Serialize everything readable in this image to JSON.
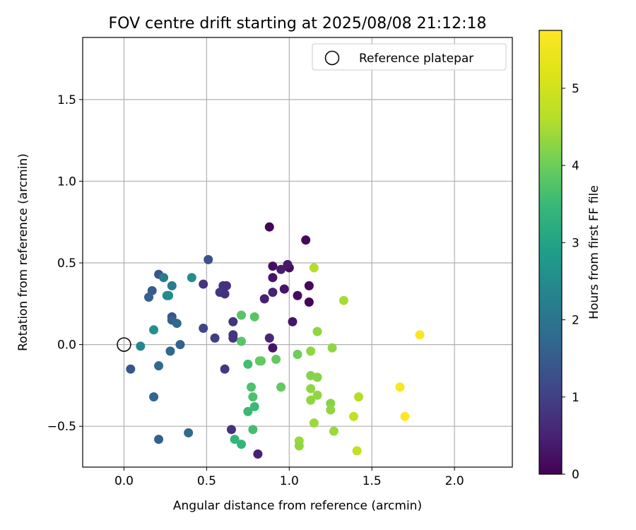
{
  "chart_data": {
    "type": "scatter",
    "title": "FOV centre drift starting at 2025/08/08 21:12:18",
    "xlabel": "Angular distance from reference (arcmin)",
    "ylabel": "Rotation from reference (arcmin)",
    "xlim": [
      -0.25,
      2.35
    ],
    "ylim": [
      -0.75,
      1.88
    ],
    "xticks": [
      0.0,
      0.5,
      1.0,
      1.5,
      2.0
    ],
    "xtick_labels": [
      "0.0",
      "0.5",
      "1.0",
      "1.5",
      "2.0"
    ],
    "yticks": [
      -0.5,
      0.0,
      0.5,
      1.0,
      1.5
    ],
    "ytick_labels": [
      "−0.5",
      "0.0",
      "0.5",
      "1.0",
      "1.5"
    ],
    "grid": true,
    "legend": {
      "placement": "top-right",
      "entries": [
        "Reference platepar"
      ]
    },
    "reference_point": {
      "x": 0.0,
      "y": 0.0,
      "label": "Reference platepar"
    },
    "colorbar": {
      "label": "Hours from first FF file",
      "colormap": "viridis",
      "range": [
        0,
        5.75
      ],
      "ticks": [
        0,
        1,
        2,
        3,
        4,
        5
      ],
      "tick_labels": [
        "0",
        "1",
        "2",
        "3",
        "4",
        "5"
      ]
    },
    "points": [
      {
        "x": 0.88,
        "y": 0.72,
        "hours": 0.05
      },
      {
        "x": 1.1,
        "y": 0.64,
        "hours": 0.1
      },
      {
        "x": 0.9,
        "y": 0.48,
        "hours": 0.2
      },
      {
        "x": 1.0,
        "y": 0.47,
        "hours": 0.15
      },
      {
        "x": 0.95,
        "y": 0.46,
        "hours": 0.4
      },
      {
        "x": 0.99,
        "y": 0.49,
        "hours": 0.35
      },
      {
        "x": 0.9,
        "y": 0.41,
        "hours": 0.3
      },
      {
        "x": 1.12,
        "y": 0.36,
        "hours": 0.1
      },
      {
        "x": 0.97,
        "y": 0.34,
        "hours": 0.3
      },
      {
        "x": 0.9,
        "y": 0.32,
        "hours": 0.5
      },
      {
        "x": 1.05,
        "y": 0.3,
        "hours": 0.15
      },
      {
        "x": 1.12,
        "y": 0.26,
        "hours": 0.05
      },
      {
        "x": 0.85,
        "y": 0.28,
        "hours": 0.45
      },
      {
        "x": 1.02,
        "y": 0.14,
        "hours": 0.3
      },
      {
        "x": 0.88,
        "y": 0.04,
        "hours": 0.55
      },
      {
        "x": 0.9,
        "y": -0.02,
        "hours": 0.3
      },
      {
        "x": 0.81,
        "y": -0.67,
        "hours": 0.45
      },
      {
        "x": 0.62,
        "y": 0.36,
        "hours": 0.75
      },
      {
        "x": 0.6,
        "y": 0.36,
        "hours": 0.75
      },
      {
        "x": 0.58,
        "y": 0.32,
        "hours": 0.85
      },
      {
        "x": 0.61,
        "y": 0.31,
        "hours": 0.75
      },
      {
        "x": 0.48,
        "y": 0.37,
        "hours": 0.8
      },
      {
        "x": 0.66,
        "y": 0.14,
        "hours": 0.8
      },
      {
        "x": 0.66,
        "y": 0.06,
        "hours": 0.8
      },
      {
        "x": 0.66,
        "y": 0.04,
        "hours": 0.8
      },
      {
        "x": 0.55,
        "y": 0.04,
        "hours": 0.95
      },
      {
        "x": 0.48,
        "y": 0.1,
        "hours": 1.1
      },
      {
        "x": 0.61,
        "y": -0.15,
        "hours": 0.85
      },
      {
        "x": 0.65,
        "y": -0.52,
        "hours": 0.75
      },
      {
        "x": 0.51,
        "y": 0.52,
        "hours": 1.3
      },
      {
        "x": 0.21,
        "y": 0.43,
        "hours": 1.4
      },
      {
        "x": 0.17,
        "y": 0.33,
        "hours": 1.5
      },
      {
        "x": 0.15,
        "y": 0.29,
        "hours": 1.6
      },
      {
        "x": 0.29,
        "y": 0.17,
        "hours": 1.3
      },
      {
        "x": 0.29,
        "y": 0.15,
        "hours": 1.6
      },
      {
        "x": 0.32,
        "y": 0.13,
        "hours": 1.75
      },
      {
        "x": 0.34,
        "y": 0.0,
        "hours": 1.6
      },
      {
        "x": 0.28,
        "y": -0.04,
        "hours": 1.7
      },
      {
        "x": 0.04,
        "y": -0.15,
        "hours": 1.4
      },
      {
        "x": 0.21,
        "y": -0.13,
        "hours": 1.8
      },
      {
        "x": 0.18,
        "y": -0.32,
        "hours": 1.7
      },
      {
        "x": 0.21,
        "y": -0.58,
        "hours": 1.6
      },
      {
        "x": 0.39,
        "y": -0.54,
        "hours": 1.8
      },
      {
        "x": 0.24,
        "y": 0.41,
        "hours": 2.2
      },
      {
        "x": 0.29,
        "y": 0.36,
        "hours": 2.2
      },
      {
        "x": 0.27,
        "y": 0.3,
        "hours": 2.5
      },
      {
        "x": 0.26,
        "y": 0.3,
        "hours": 2.5
      },
      {
        "x": 0.41,
        "y": 0.41,
        "hours": 2.5
      },
      {
        "x": 0.18,
        "y": 0.09,
        "hours": 2.6
      },
      {
        "x": 0.1,
        "y": -0.01,
        "hours": 2.4
      },
      {
        "x": 0.71,
        "y": 0.18,
        "hours": 3.8
      },
      {
        "x": 0.79,
        "y": 0.17,
        "hours": 3.8
      },
      {
        "x": 0.71,
        "y": 0.02,
        "hours": 3.8
      },
      {
        "x": 0.75,
        "y": -0.12,
        "hours": 3.6
      },
      {
        "x": 0.82,
        "y": -0.1,
        "hours": 3.9
      },
      {
        "x": 0.83,
        "y": -0.1,
        "hours": 3.9
      },
      {
        "x": 0.92,
        "y": -0.09,
        "hours": 3.9
      },
      {
        "x": 0.95,
        "y": -0.26,
        "hours": 3.9
      },
      {
        "x": 0.77,
        "y": -0.26,
        "hours": 3.7
      },
      {
        "x": 0.78,
        "y": -0.32,
        "hours": 3.7
      },
      {
        "x": 0.79,
        "y": -0.38,
        "hours": 3.5
      },
      {
        "x": 0.75,
        "y": -0.41,
        "hours": 3.5
      },
      {
        "x": 0.78,
        "y": -0.52,
        "hours": 3.6
      },
      {
        "x": 0.67,
        "y": -0.58,
        "hours": 3.4
      },
      {
        "x": 0.71,
        "y": -0.61,
        "hours": 3.4
      },
      {
        "x": 1.05,
        "y": -0.06,
        "hours": 4.0
      },
      {
        "x": 1.13,
        "y": -0.04,
        "hours": 4.3
      },
      {
        "x": 1.17,
        "y": 0.08,
        "hours": 4.3
      },
      {
        "x": 1.26,
        "y": -0.02,
        "hours": 4.3
      },
      {
        "x": 1.13,
        "y": -0.19,
        "hours": 4.2
      },
      {
        "x": 1.17,
        "y": -0.2,
        "hours": 4.2
      },
      {
        "x": 1.13,
        "y": -0.27,
        "hours": 4.3
      },
      {
        "x": 1.17,
        "y": -0.31,
        "hours": 4.3
      },
      {
        "x": 1.13,
        "y": -0.34,
        "hours": 4.3
      },
      {
        "x": 1.25,
        "y": -0.36,
        "hours": 4.2
      },
      {
        "x": 1.25,
        "y": -0.4,
        "hours": 4.3
      },
      {
        "x": 1.15,
        "y": -0.48,
        "hours": 4.4
      },
      {
        "x": 1.27,
        "y": -0.53,
        "hours": 4.4
      },
      {
        "x": 1.06,
        "y": -0.59,
        "hours": 4.4
      },
      {
        "x": 1.06,
        "y": -0.62,
        "hours": 4.3
      },
      {
        "x": 1.15,
        "y": 0.47,
        "hours": 4.6
      },
      {
        "x": 1.33,
        "y": 0.27,
        "hours": 4.5
      },
      {
        "x": 1.42,
        "y": -0.32,
        "hours": 4.6
      },
      {
        "x": 1.39,
        "y": -0.44,
        "hours": 4.8
      },
      {
        "x": 1.41,
        "y": -0.65,
        "hours": 4.8
      },
      {
        "x": 1.79,
        "y": 0.06,
        "hours": 5.7
      },
      {
        "x": 1.67,
        "y": -0.26,
        "hours": 5.65
      },
      {
        "x": 1.7,
        "y": -0.44,
        "hours": 5.75
      }
    ]
  }
}
